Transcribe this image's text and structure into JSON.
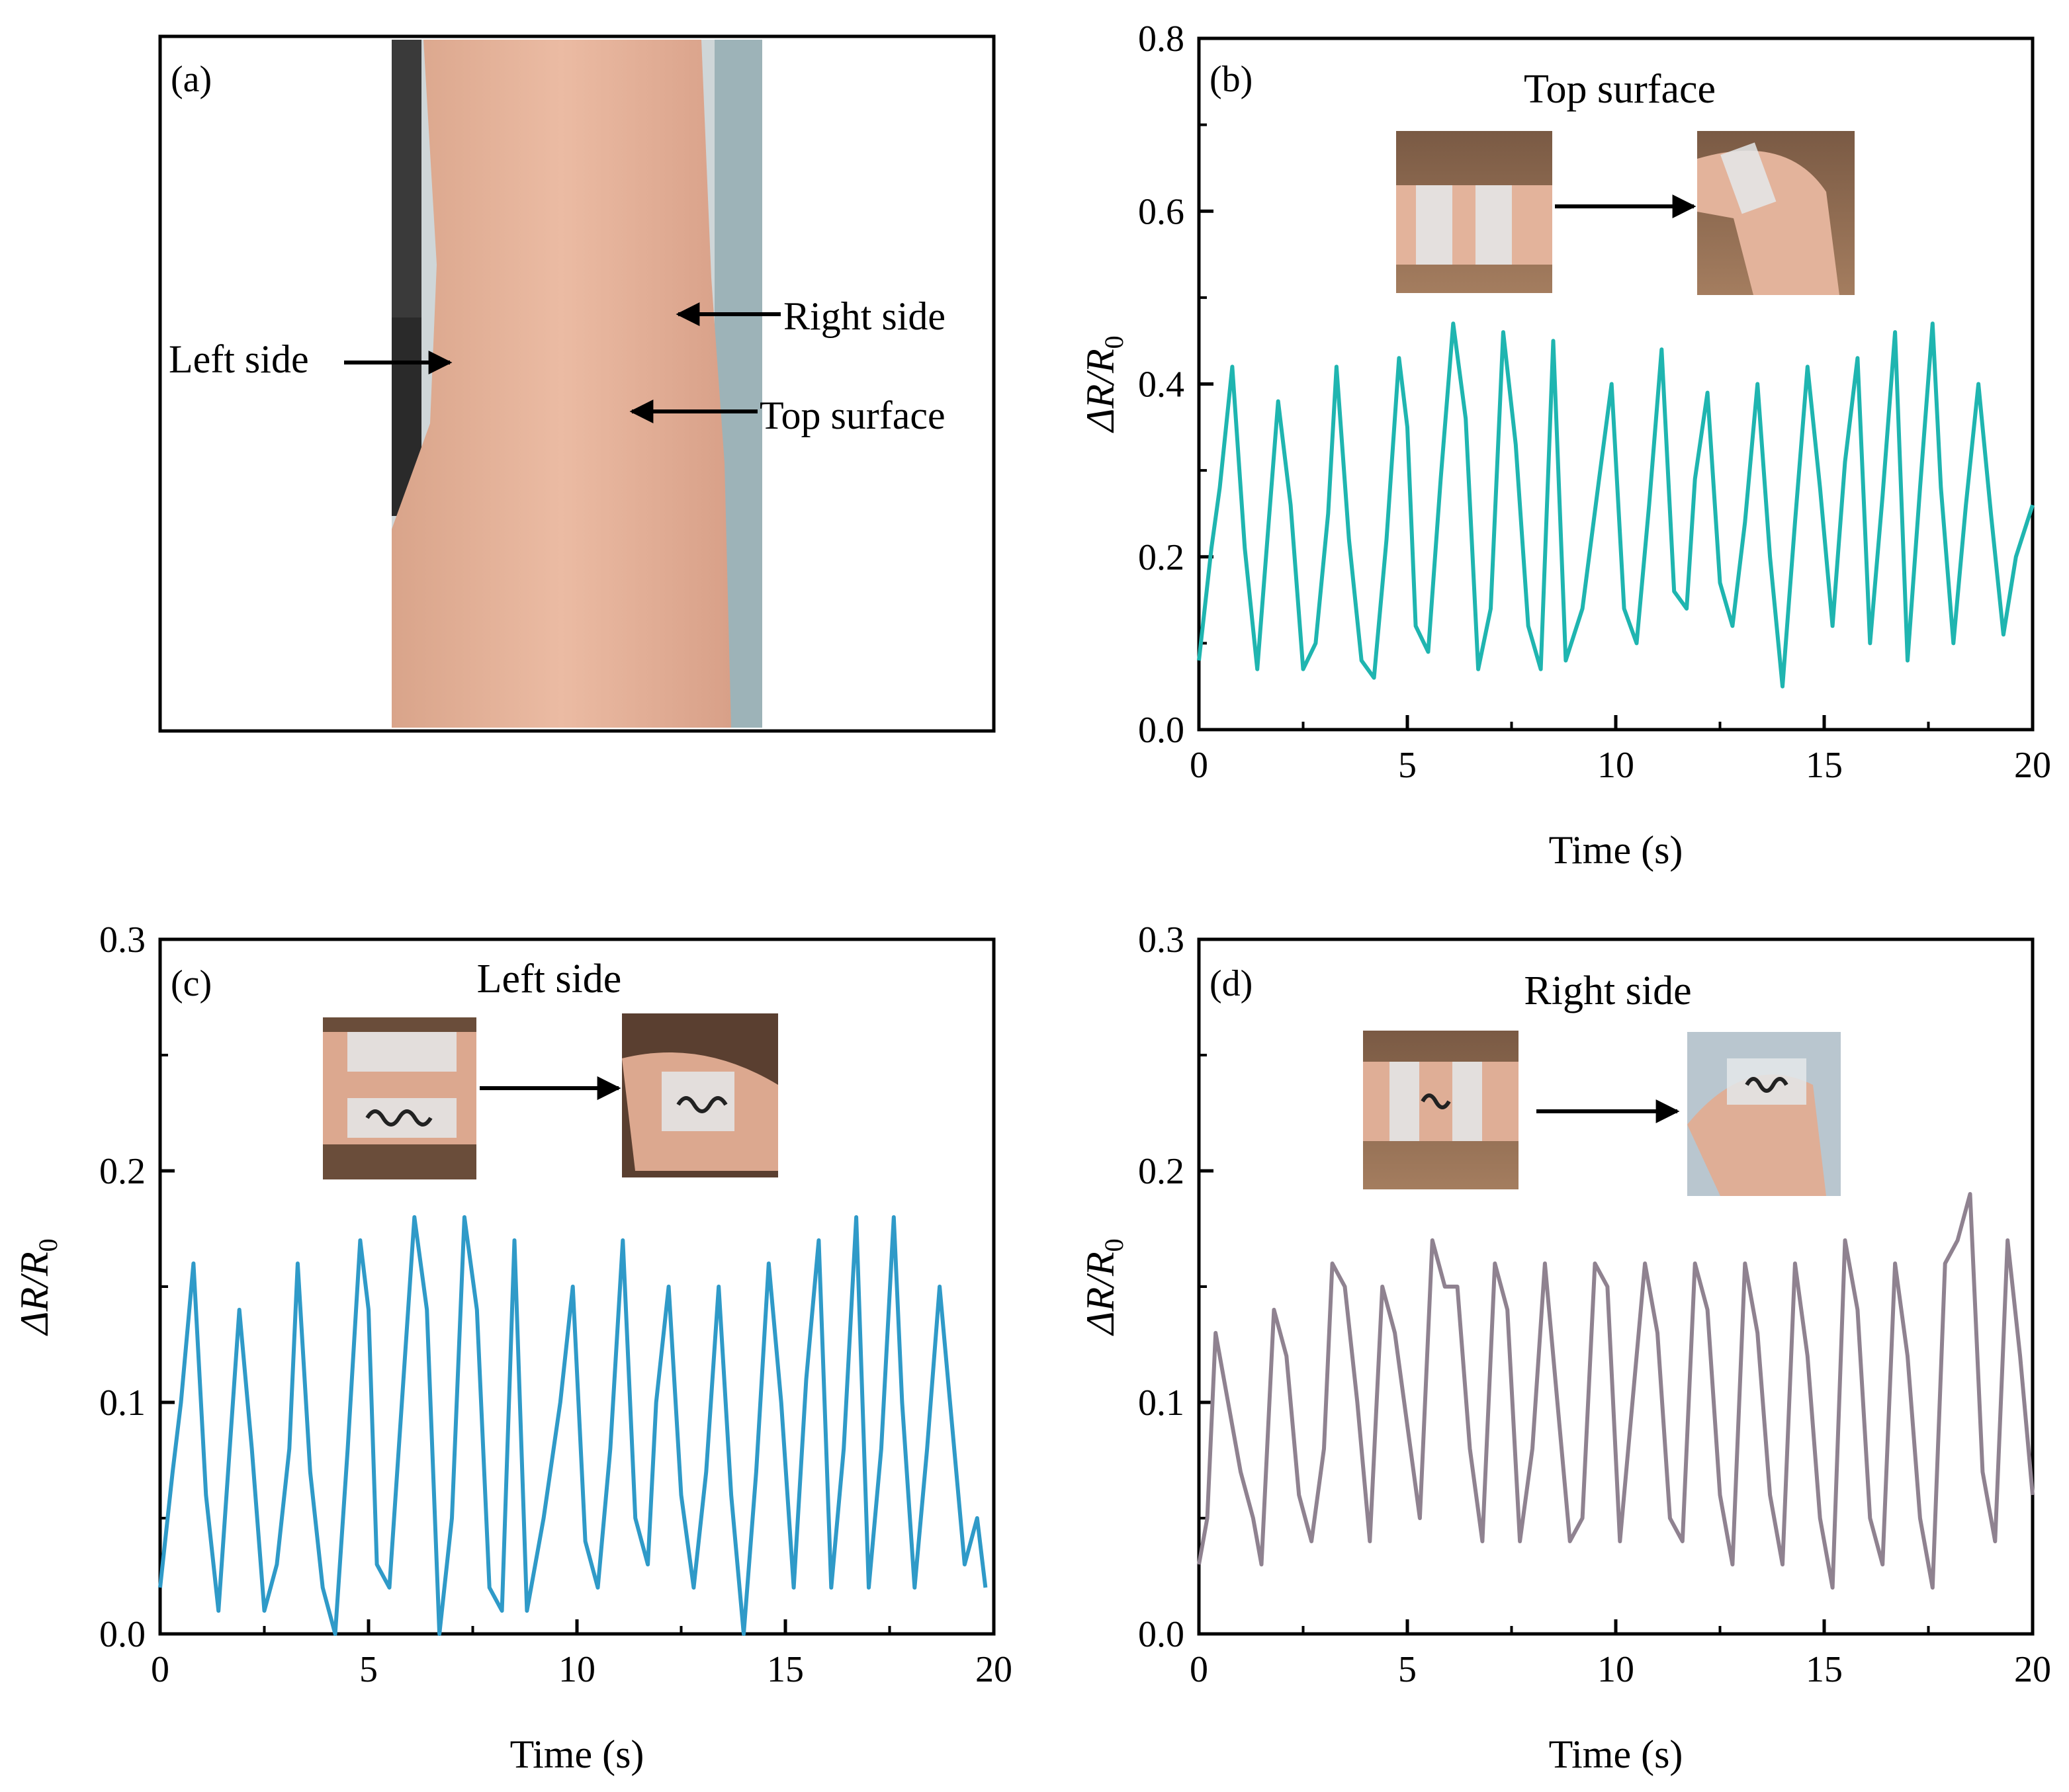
{
  "panels": {
    "a": {
      "tag": "(a)",
      "annotations": {
        "right": "Right side",
        "left": "Left side",
        "top": "Top surface"
      }
    },
    "b": {
      "tag": "(b)",
      "inset_title": "Top surface",
      "xlabel": "Time (s)",
      "ylabel_main": "ΔR/R",
      "ylabel_sub": "0"
    },
    "c": {
      "tag": "(c)",
      "inset_title": "Left side",
      "xlabel": "Time (s)",
      "ylabel_main": "ΔR/R",
      "ylabel_sub": "0"
    },
    "d": {
      "tag": "(d)",
      "inset_title": "Right side",
      "xlabel": "Time (s)",
      "ylabel_main": "ΔR/R",
      "ylabel_sub": "0"
    }
  },
  "colors": {
    "b": "#1fb5b0",
    "c": "#2f9ac8",
    "d": "#8f8290",
    "skin": "#e6b49c",
    "background_wall": "#9db3b8"
  },
  "chart_data": [
    {
      "panel": "b",
      "type": "line",
      "xlim": [
        0,
        20
      ],
      "ylim": [
        0,
        0.8
      ],
      "xticks": [
        "0",
        "5",
        "10",
        "15",
        "20"
      ],
      "yticks": [
        "0.0",
        "0.2",
        "0.4",
        "0.6",
        "0.8"
      ],
      "x": [
        0,
        0.3,
        0.5,
        0.8,
        1.1,
        1.4,
        1.9,
        2.2,
        2.5,
        2.8,
        3.1,
        3.3,
        3.6,
        3.9,
        4.2,
        4.5,
        4.8,
        5.0,
        5.2,
        5.5,
        5.8,
        6.1,
        6.4,
        6.7,
        7.0,
        7.3,
        7.6,
        7.9,
        8.2,
        8.5,
        8.8,
        9.2,
        9.6,
        9.9,
        10.2,
        10.5,
        10.8,
        11.1,
        11.4,
        11.7,
        11.9,
        12.2,
        12.5,
        12.8,
        13.1,
        13.4,
        13.7,
        14.0,
        14.3,
        14.6,
        14.9,
        15.2,
        15.5,
        15.8,
        16.1,
        16.4,
        16.7,
        17.0,
        17.3,
        17.6,
        17.8,
        18.1,
        18.4,
        18.7,
        19.0,
        19.3,
        19.6,
        20.0
      ],
      "y": [
        0.08,
        0.21,
        0.28,
        0.42,
        0.21,
        0.07,
        0.38,
        0.26,
        0.07,
        0.1,
        0.25,
        0.42,
        0.22,
        0.08,
        0.06,
        0.22,
        0.43,
        0.35,
        0.12,
        0.09,
        0.29,
        0.47,
        0.36,
        0.07,
        0.14,
        0.46,
        0.33,
        0.12,
        0.07,
        0.45,
        0.08,
        0.14,
        0.29,
        0.4,
        0.14,
        0.1,
        0.26,
        0.44,
        0.16,
        0.14,
        0.29,
        0.39,
        0.17,
        0.12,
        0.24,
        0.4,
        0.2,
        0.05,
        0.24,
        0.42,
        0.28,
        0.12,
        0.31,
        0.43,
        0.1,
        0.27,
        0.46,
        0.08,
        0.28,
        0.47,
        0.28,
        0.1,
        0.26,
        0.4,
        0.25,
        0.11,
        0.2,
        0.26
      ]
    },
    {
      "panel": "c",
      "type": "line",
      "xlim": [
        0,
        20
      ],
      "ylim": [
        0,
        0.3
      ],
      "xticks": [
        "0",
        "5",
        "10",
        "15",
        "20"
      ],
      "yticks": [
        "0.0",
        "0.1",
        "0.2",
        "0.3"
      ],
      "x": [
        0,
        0.3,
        0.5,
        0.8,
        1.1,
        1.4,
        1.9,
        2.2,
        2.5,
        2.8,
        3.1,
        3.3,
        3.6,
        3.9,
        4.2,
        4.5,
        4.8,
        5.0,
        5.2,
        5.5,
        5.8,
        6.1,
        6.4,
        6.7,
        7.0,
        7.3,
        7.6,
        7.9,
        8.2,
        8.5,
        8.8,
        9.2,
        9.6,
        9.9,
        10.2,
        10.5,
        10.8,
        11.1,
        11.4,
        11.7,
        11.9,
        12.2,
        12.5,
        12.8,
        13.1,
        13.4,
        13.7,
        14.0,
        14.3,
        14.6,
        14.9,
        15.2,
        15.5,
        15.8,
        16.1,
        16.4,
        16.7,
        17.0,
        17.3,
        17.6,
        17.8,
        18.1,
        18.4,
        18.7,
        19.0,
        19.3,
        19.6,
        19.8
      ],
      "y": [
        0.02,
        0.07,
        0.1,
        0.16,
        0.06,
        0.01,
        0.14,
        0.08,
        0.01,
        0.03,
        0.08,
        0.16,
        0.07,
        0.02,
        0.0,
        0.08,
        0.17,
        0.14,
        0.03,
        0.02,
        0.1,
        0.18,
        0.14,
        0.0,
        0.05,
        0.18,
        0.14,
        0.02,
        0.01,
        0.17,
        0.01,
        0.05,
        0.1,
        0.15,
        0.04,
        0.02,
        0.08,
        0.17,
        0.05,
        0.03,
        0.1,
        0.15,
        0.06,
        0.02,
        0.07,
        0.15,
        0.06,
        0.0,
        0.07,
        0.16,
        0.1,
        0.02,
        0.11,
        0.17,
        0.02,
        0.08,
        0.18,
        0.02,
        0.08,
        0.18,
        0.1,
        0.02,
        0.08,
        0.15,
        0.09,
        0.03,
        0.05,
        0.02
      ]
    },
    {
      "panel": "d",
      "type": "line",
      "xlim": [
        0,
        20
      ],
      "ylim": [
        0,
        0.3
      ],
      "xticks": [
        "0",
        "5",
        "10",
        "15",
        "20"
      ],
      "yticks": [
        "0.0",
        "0.1",
        "0.2",
        "0.3"
      ],
      "x": [
        0,
        0.2,
        0.4,
        0.7,
        1.0,
        1.3,
        1.5,
        1.8,
        2.1,
        2.4,
        2.7,
        3.0,
        3.2,
        3.5,
        3.8,
        4.1,
        4.4,
        4.7,
        5.0,
        5.3,
        5.6,
        5.9,
        6.2,
        6.5,
        6.8,
        7.1,
        7.4,
        7.7,
        8.0,
        8.3,
        8.6,
        8.9,
        9.2,
        9.5,
        9.8,
        10.1,
        10.4,
        10.7,
        11.0,
        11.3,
        11.6,
        11.9,
        12.2,
        12.5,
        12.8,
        13.1,
        13.4,
        13.7,
        14.0,
        14.3,
        14.6,
        14.9,
        15.2,
        15.5,
        15.8,
        16.1,
        16.4,
        16.7,
        17.0,
        17.3,
        17.6,
        17.9,
        18.2,
        18.5,
        18.8,
        19.1,
        19.4,
        19.7,
        20.0
      ],
      "y": [
        0.03,
        0.05,
        0.13,
        0.1,
        0.07,
        0.05,
        0.03,
        0.14,
        0.12,
        0.06,
        0.04,
        0.08,
        0.16,
        0.15,
        0.1,
        0.04,
        0.15,
        0.13,
        0.09,
        0.05,
        0.17,
        0.15,
        0.15,
        0.08,
        0.04,
        0.16,
        0.14,
        0.04,
        0.08,
        0.16,
        0.1,
        0.04,
        0.05,
        0.16,
        0.15,
        0.04,
        0.1,
        0.16,
        0.13,
        0.05,
        0.04,
        0.16,
        0.14,
        0.06,
        0.03,
        0.16,
        0.13,
        0.06,
        0.03,
        0.16,
        0.12,
        0.05,
        0.02,
        0.17,
        0.14,
        0.05,
        0.03,
        0.16,
        0.12,
        0.05,
        0.02,
        0.16,
        0.17,
        0.19,
        0.07,
        0.04,
        0.17,
        0.12,
        0.06
      ]
    }
  ]
}
